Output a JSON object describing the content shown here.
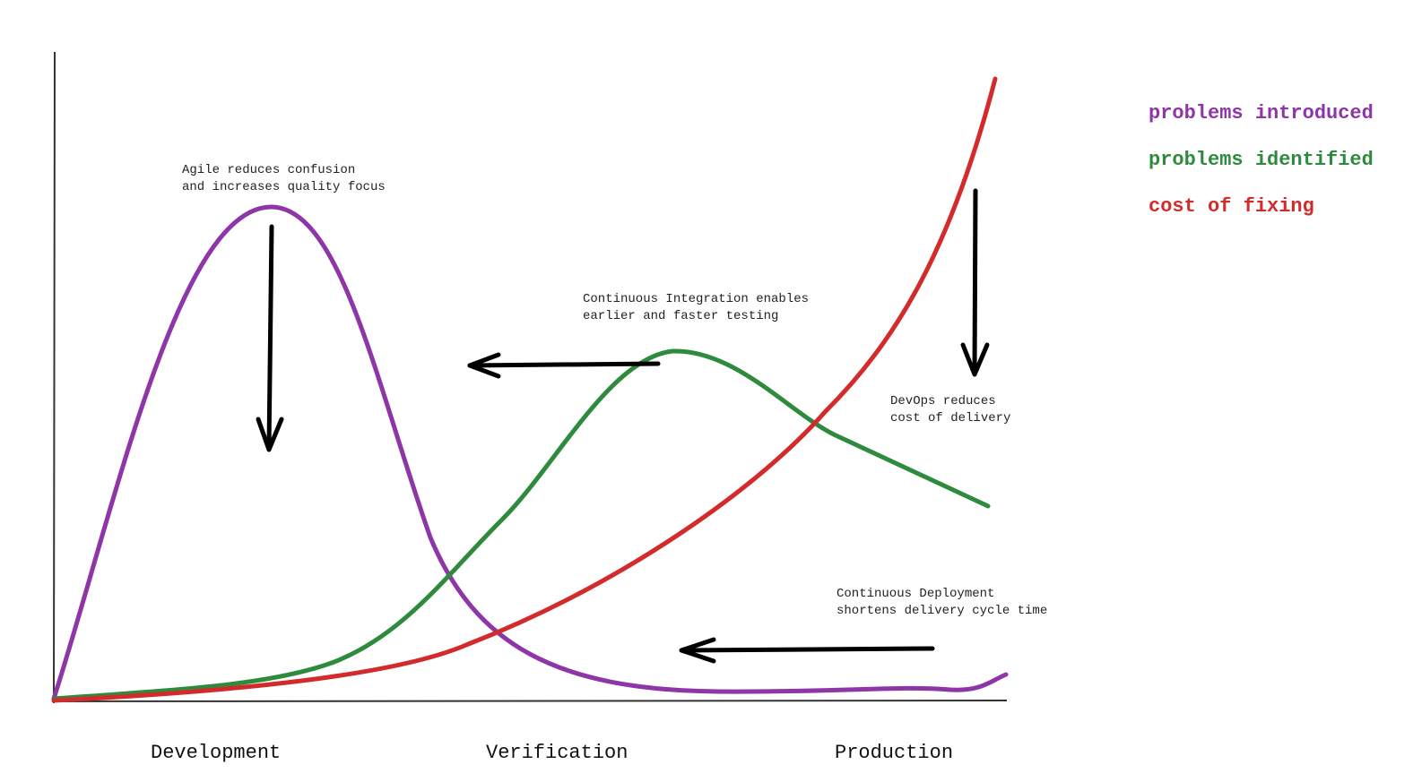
{
  "annotations": [
    {
      "lines": [
        "Agile reduces confusion",
        "and increases quality focus"
      ]
    },
    {
      "lines": [
        "Continuous Integration enables",
        "earlier and faster testing"
      ]
    },
    {
      "lines": [
        "DevOps reduces",
        "cost of delivery"
      ]
    },
    {
      "lines": [
        "Continuous Deployment",
        "shortens delivery cycle time"
      ]
    }
  ],
  "phases": [
    "Development",
    "Verification",
    "Production"
  ],
  "legend": [
    {
      "name": "problems introduced",
      "color": "#8e35a8"
    },
    {
      "name": "problems identified",
      "color": "#2e8b3e"
    },
    {
      "name": "cost of fixing",
      "color": "#d32b2b"
    }
  ]
}
